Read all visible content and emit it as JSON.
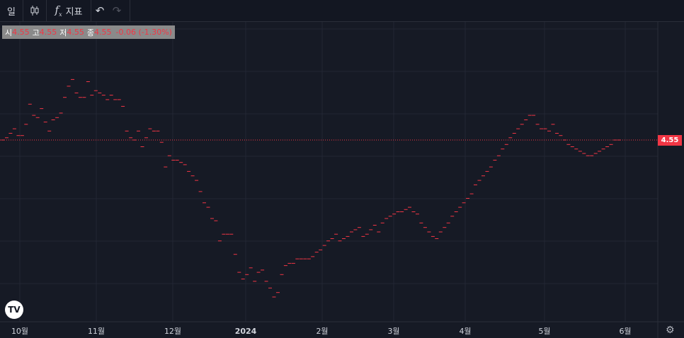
{
  "toolbar": {
    "interval_label": "일",
    "candle_icon": "candlestick-icon",
    "indicator_icon": "function-icon",
    "indicator_symbol": "f",
    "indicator_sub": "x",
    "indicator_label": "지표",
    "undo_symbol": "↶",
    "redo_symbol": "↷"
  },
  "legend": {
    "open_label": "시",
    "open_value": "4.55",
    "high_label": "고",
    "high_value": "4.55",
    "low_label": "저",
    "low_value": "4.55",
    "close_label": "종",
    "close_value": "4.55",
    "change": "-0.06 (-1.30%)"
  },
  "price_tag": "4.55",
  "logo_text": "TV",
  "colors": {
    "background": "#161a25",
    "bar": "#f23645",
    "grid": "#222634",
    "text": "#d1d4dc",
    "price_line": "#f23645"
  },
  "chart_data": {
    "type": "scatter",
    "x_ticks": [
      "10월",
      "11월",
      "12월",
      "2024",
      "2월",
      "3월",
      "4월",
      "5월",
      "6월"
    ],
    "last_value": 4.55,
    "series": [
      {
        "values": [
          4.55,
          4.56,
          4.58,
          4.6,
          4.57,
          4.57,
          4.62,
          4.71,
          4.66,
          4.65,
          4.69,
          4.63,
          4.59,
          4.64,
          4.65,
          4.67,
          4.74,
          4.79,
          4.82,
          4.76,
          4.74,
          4.74,
          4.81,
          4.75,
          4.77,
          4.76,
          4.75,
          4.73,
          4.75,
          4.73,
          4.73,
          4.7,
          4.59,
          4.56,
          4.55,
          4.59,
          4.52,
          4.56,
          4.6,
          4.59,
          4.59,
          4.54,
          4.43,
          4.48,
          4.46,
          4.46,
          4.45,
          4.44,
          4.41,
          4.39,
          4.37,
          4.32,
          4.27,
          4.25,
          4.2,
          4.19,
          4.1,
          4.13,
          4.13,
          4.13,
          4.04,
          3.96,
          3.93,
          3.95,
          3.98,
          3.92,
          3.96,
          3.97,
          3.92,
          3.89,
          3.85,
          3.87,
          3.95,
          3.99,
          4.0,
          4.0,
          4.02,
          4.02,
          4.02,
          4.02,
          4.03,
          4.05,
          4.06,
          4.08,
          4.1,
          4.11,
          4.13,
          4.1,
          4.11,
          4.12,
          4.14,
          4.15,
          4.16,
          4.12,
          4.13,
          4.15,
          4.17,
          4.14,
          4.18,
          4.2,
          4.21,
          4.22,
          4.23,
          4.23,
          4.24,
          4.25,
          4.23,
          4.22,
          4.18,
          4.16,
          4.14,
          4.12,
          4.11,
          4.14,
          4.16,
          4.18,
          4.21,
          4.23,
          4.25,
          4.27,
          4.29,
          4.31,
          4.35,
          4.37,
          4.39,
          4.41,
          4.43,
          4.46,
          4.48,
          4.51,
          4.53,
          4.56,
          4.58,
          4.6,
          4.62,
          4.64,
          4.66,
          4.66,
          4.62,
          4.6,
          4.6,
          4.59,
          4.62,
          4.58,
          4.57,
          4.55,
          4.53,
          4.52,
          4.51,
          4.5,
          4.49,
          4.48,
          4.48,
          4.49,
          4.5,
          4.51,
          4.52,
          4.53,
          4.55,
          4.55
        ]
      }
    ]
  }
}
